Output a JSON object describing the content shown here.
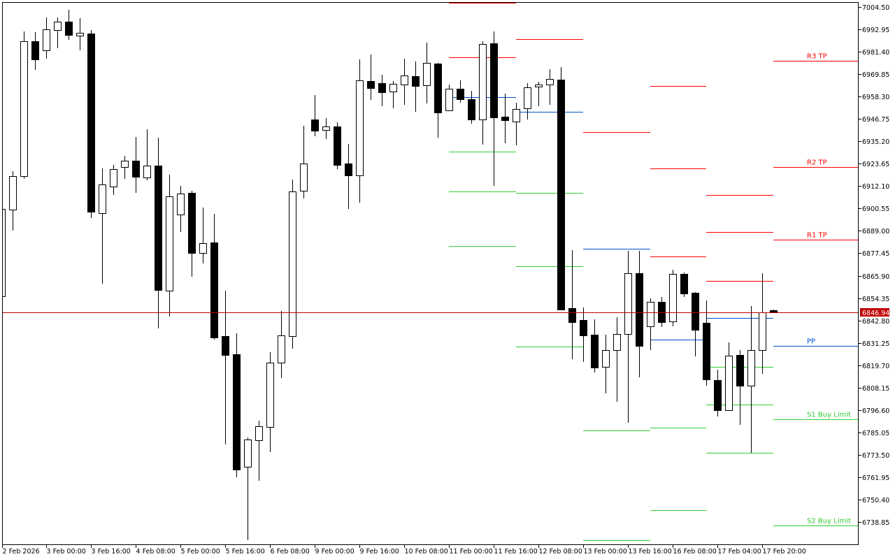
{
  "chart_data": {
    "type": "candlestick",
    "timeframe_bar_hours": 4,
    "ylim": [
      6727.0,
      7007.5
    ],
    "grid": false,
    "candle_format": [
      "open",
      "high",
      "low",
      "close"
    ],
    "candles": [
      [
        6855.3,
        6900.3,
        6855.3,
        6900.3
      ],
      [
        6900.0,
        6919.8,
        6889.1,
        6917.3
      ],
      [
        6917.3,
        6991.9,
        6915.8,
        6986.8
      ],
      [
        6986.8,
        6991.5,
        6972.1,
        6977.5
      ],
      [
        6982.1,
        6999.1,
        6977.8,
        6993.0
      ],
      [
        6992.6,
        6999.1,
        6983.2,
        6996.9
      ],
      [
        6996.9,
        7003.1,
        6987.6,
        6990.1
      ],
      [
        6989.7,
        6998.7,
        6982.1,
        6991.2
      ],
      [
        6990.8,
        6992.6,
        6895.6,
        6898.9
      ],
      [
        6898.1,
        6921.2,
        6861.7,
        6912.9
      ],
      [
        6911.8,
        6923.0,
        6907.5,
        6920.9
      ],
      [
        6921.9,
        6927.7,
        6915.8,
        6925.2
      ],
      [
        6925.2,
        6937.4,
        6908.6,
        6916.9
      ],
      [
        6916.5,
        6941.4,
        6915.1,
        6922.7
      ],
      [
        6922.7,
        6937.1,
        6838.7,
        6858.5
      ],
      [
        6858.1,
        6918.0,
        6844.8,
        6906.8
      ],
      [
        6897.4,
        6912.2,
        6888.4,
        6908.2
      ],
      [
        6908.6,
        6909.7,
        6865.3,
        6877.6
      ],
      [
        6877.6,
        6901.0,
        6872.2,
        6882.6
      ],
      [
        6883.0,
        6897.8,
        6832.9,
        6834.0
      ],
      [
        6834.7,
        6858.1,
        6778.8,
        6825.0
      ],
      [
        6825.3,
        6836.1,
        6761.9,
        6765.8
      ],
      [
        6767.3,
        6782.4,
        6729.4,
        6781.4
      ],
      [
        6781.0,
        6791.1,
        6760.1,
        6788.2
      ],
      [
        6787.8,
        6826.4,
        6774.9,
        6821.0
      ],
      [
        6821.0,
        6847.7,
        6813.1,
        6835.1
      ],
      [
        6834.7,
        6915.5,
        6828.2,
        6909.3
      ],
      [
        6909.7,
        6943.2,
        6905.7,
        6923.7
      ],
      [
        6946.5,
        6959.1,
        6937.8,
        6940.7
      ],
      [
        6941.0,
        6947.2,
        6936.4,
        6942.9
      ],
      [
        6942.9,
        6945.0,
        6920.9,
        6923.0
      ],
      [
        6923.7,
        6933.8,
        6900.3,
        6917.6
      ],
      [
        6917.6,
        6977.5,
        6903.6,
        6966.6
      ],
      [
        6966.3,
        6980.0,
        6956.5,
        6962.7
      ],
      [
        6965.2,
        6969.5,
        6953.3,
        6960.5
      ],
      [
        6960.9,
        6966.3,
        6952.2,
        6964.8
      ],
      [
        6964.5,
        6977.8,
        6954.0,
        6969.2
      ],
      [
        6968.8,
        6976.4,
        6950.4,
        6963.8
      ],
      [
        6964.1,
        6986.1,
        6954.7,
        6975.7
      ],
      [
        6975.3,
        6975.7,
        6937.1,
        6950.1
      ],
      [
        6951.1,
        6964.5,
        6951.1,
        6962.3
      ],
      [
        6962.3,
        6966.6,
        6955.1,
        6956.9
      ],
      [
        6956.9,
        6961.2,
        6944.3,
        6946.5
      ],
      [
        6946.5,
        6986.8,
        6933.5,
        6985.4
      ],
      [
        6985.8,
        6991.9,
        6912.2,
        6947.5
      ],
      [
        6947.9,
        6959.8,
        6934.2,
        6946.1
      ],
      [
        6945.4,
        6955.1,
        6933.1,
        6951.9
      ],
      [
        6952.2,
        6965.2,
        6946.5,
        6963.0
      ],
      [
        6963.4,
        6965.9,
        6953.3,
        6964.5
      ],
      [
        6964.5,
        6972.4,
        6954.0,
        6967.4
      ],
      [
        6967.0,
        6973.5,
        6848.4,
        6848.4
      ],
      [
        6849.1,
        6879.0,
        6822.8,
        6841.9
      ],
      [
        6843.0,
        6849.5,
        6821.4,
        6835.1
      ],
      [
        6835.4,
        6843.4,
        6815.9,
        6818.5
      ],
      [
        6818.8,
        6835.4,
        6805.1,
        6827.5
      ],
      [
        6827.5,
        6844.4,
        6800.8,
        6835.8
      ],
      [
        6835.8,
        6878.7,
        6790.0,
        6867.1
      ],
      [
        6867.1,
        6878.7,
        6813.4,
        6829.6
      ],
      [
        6839.7,
        6854.2,
        6827.5,
        6852.4
      ],
      [
        6852.4,
        6854.9,
        6839.4,
        6841.9
      ],
      [
        6842.3,
        6868.9,
        6839.7,
        6866.8
      ],
      [
        6866.8,
        6867.5,
        6854.9,
        6856.7
      ],
      [
        6857.1,
        6857.4,
        6824.2,
        6837.9
      ],
      [
        6841.5,
        6853.1,
        6809.1,
        6812.4
      ],
      [
        6812.0,
        6817.4,
        6793.2,
        6796.5
      ],
      [
        6796.5,
        6831.4,
        6796.5,
        6824.6
      ],
      [
        6825.0,
        6827.5,
        6788.9,
        6809.1
      ],
      [
        6809.1,
        6850.2,
        6774.5,
        6827.5
      ],
      [
        6827.5,
        6867.1,
        6815.2,
        6846.9
      ],
      [
        6848.0,
        6848.4,
        6846.94,
        6846.94
      ]
    ],
    "current_price": "6846.94",
    "y_ticks": [
      "7004.50",
      "6992.95",
      "6981.40",
      "6969.85",
      "6958.30",
      "6946.75",
      "6935.20",
      "6923.65",
      "6912.10",
      "6900.55",
      "6889.00",
      "6877.45",
      "6865.90",
      "6854.35",
      "6842.80",
      "6831.25",
      "6819.70",
      "6808.15",
      "6796.60",
      "6785.05",
      "6773.50",
      "6761.95",
      "6750.40",
      "6738.85"
    ],
    "x_ticks": [
      {
        "bar": 0,
        "label": "2 Feb 2026"
      },
      {
        "bar": 4,
        "label": "3 Feb 00:00"
      },
      {
        "bar": 8,
        "label": "3 Feb 16:00"
      },
      {
        "bar": 12,
        "label": "4 Feb 08:00"
      },
      {
        "bar": 16,
        "label": "5 Feb 00:00"
      },
      {
        "bar": 20,
        "label": "5 Feb 16:00"
      },
      {
        "bar": 24,
        "label": "6 Feb 08:00"
      },
      {
        "bar": 28,
        "label": "9 Feb 00:00"
      },
      {
        "bar": 32,
        "label": "9 Feb 16:00"
      },
      {
        "bar": 36,
        "label": "10 Feb 08:00"
      },
      {
        "bar": 40,
        "label": "11 Feb 00:00"
      },
      {
        "bar": 44,
        "label": "11 Feb 16:00"
      },
      {
        "bar": 48,
        "label": "12 Feb 08:00"
      },
      {
        "bar": 52,
        "label": "13 Feb 00:00"
      },
      {
        "bar": 56,
        "label": "13 Feb 16:00"
      },
      {
        "bar": 60,
        "label": "16 Feb 08:00"
      },
      {
        "bar": 64,
        "label": "17 Feb 04:00"
      },
      {
        "bar": 68,
        "label": "17 Feb 20:00"
      }
    ],
    "pivot_segments": [
      {
        "from_bar": 40,
        "to_bar": 46,
        "levels": [
          {
            "price": 7006.7,
            "color": "#ff0000"
          },
          {
            "price": 6978.5,
            "color": "#ff0000"
          },
          {
            "price": 6958.0,
            "color": "#0050d0"
          },
          {
            "price": 6929.9,
            "color": "#32cd32"
          },
          {
            "price": 6909.3,
            "color": "#32cd32"
          },
          {
            "price": 6881.2,
            "color": "#32cd32"
          }
        ]
      },
      {
        "from_bar": 46,
        "to_bar": 52,
        "levels": [
          {
            "price": 6987.9,
            "color": "#ff0000"
          },
          {
            "price": 6950.4,
            "color": "#0050d0"
          },
          {
            "price": 6908.6,
            "color": "#32cd32"
          },
          {
            "price": 6870.8,
            "color": "#32cd32"
          },
          {
            "price": 6829.3,
            "color": "#32cd32"
          }
        ]
      },
      {
        "from_bar": 52,
        "to_bar": 58,
        "levels": [
          {
            "price": 6939.8,
            "color": "#ff0000"
          },
          {
            "price": 6879.8,
            "color": "#0050d0"
          },
          {
            "price": 6786.1,
            "color": "#32cd32"
          },
          {
            "price": 6729.5,
            "color": "#32cd32"
          }
        ]
      },
      {
        "from_bar": 58,
        "to_bar": 63,
        "levels": [
          {
            "price": 6963.8,
            "color": "#ff0000"
          },
          {
            "price": 6921.2,
            "color": "#ff0000"
          },
          {
            "price": 6875.8,
            "color": "#ff0000"
          },
          {
            "price": 6832.9,
            "color": "#0050d0"
          },
          {
            "price": 6787.5,
            "color": "#32cd32"
          },
          {
            "price": 6744.9,
            "color": "#32cd32"
          }
        ]
      },
      {
        "from_bar": 63,
        "to_bar": 69,
        "levels": [
          {
            "price": 6907.5,
            "color": "#ff0000"
          },
          {
            "price": 6888.4,
            "color": "#ff0000"
          },
          {
            "price": 6863.2,
            "color": "#ff0000"
          },
          {
            "price": 6844.1,
            "color": "#0050d0"
          },
          {
            "price": 6818.8,
            "color": "#32cd32"
          },
          {
            "price": 6799.5,
            "color": "#32cd32"
          },
          {
            "price": 6774.5,
            "color": "#32cd32"
          }
        ]
      },
      {
        "from_bar": 69,
        "to_bar": null,
        "levels": [
          {
            "price": 6976.7,
            "color": "#ff0000",
            "label": "R3 TP"
          },
          {
            "price": 6921.9,
            "color": "#ff0000",
            "label": "R2 TP"
          },
          {
            "price": 6884.4,
            "color": "#ff0000",
            "label": "R1 TP"
          },
          {
            "price": 6829.6,
            "color": "#0050d0",
            "label": "PP"
          },
          {
            "price": 6791.8,
            "color": "#32cd32",
            "label": "S1 Buy Limit"
          },
          {
            "price": 6737.0,
            "color": "#32cd32",
            "label": "S2 Buy Limit"
          }
        ]
      }
    ],
    "colors": {
      "bull_body": "#ffffff",
      "bear_body": "#000000",
      "outline": "#000000",
      "price_line": "#c00000",
      "price_label_bg": "#c00000"
    }
  }
}
